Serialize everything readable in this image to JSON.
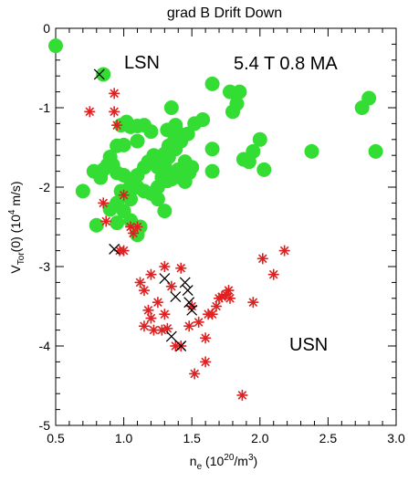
{
  "chart_data": {
    "type": "scatter",
    "title": "grad B Drift Down",
    "xlabel": {
      "main": "n",
      "sub": "e",
      "rest": " (10",
      "sup": "20",
      "tail": "/m",
      "sup2": "3",
      "end": ")"
    },
    "ylabel": {
      "main": "V",
      "sub": "Tor",
      "rest": "(0) (10",
      "sup": "4",
      "tail": " m/s)"
    },
    "xlim": [
      0.5,
      3.0
    ],
    "ylim": [
      -5,
      0
    ],
    "x_ticks": [
      "0.5",
      "1.0",
      "1.5",
      "2.0",
      "2.5",
      "3.0"
    ],
    "x_tick_values": [
      0.5,
      1.0,
      1.5,
      2.0,
      2.5,
      3.0
    ],
    "y_ticks": [
      "0",
      "-1",
      "-2",
      "-3",
      "-4",
      "-5"
    ],
    "y_tick_values": [
      0,
      -1,
      -2,
      -3,
      -4,
      -5
    ],
    "grid": false,
    "annotations": {
      "lsn": {
        "text": "LSN",
        "color": "#22cc22"
      },
      "usn": {
        "text": "USN",
        "color": "#e02020"
      },
      "params": {
        "text": "5.4 T  0.8 MA",
        "color": "#000000"
      }
    },
    "series": [
      {
        "marker": "circle",
        "color": "#33dd33",
        "points": [
          [
            0.5,
            -0.22
          ],
          [
            0.85,
            -0.58
          ],
          [
            0.95,
            -1.48
          ],
          [
            1.0,
            -1.47
          ],
          [
            1.1,
            -1.42
          ],
          [
            0.98,
            -1.22
          ],
          [
            1.02,
            -1.18
          ],
          [
            1.05,
            -1.24
          ],
          [
            1.1,
            -1.23
          ],
          [
            1.15,
            -1.22
          ],
          [
            1.2,
            -1.3
          ],
          [
            1.32,
            -1.28
          ],
          [
            1.35,
            -1.0
          ],
          [
            1.38,
            -1.22
          ],
          [
            1.4,
            -1.32
          ],
          [
            1.37,
            -1.42
          ],
          [
            1.33,
            -1.48
          ],
          [
            1.3,
            -1.58
          ],
          [
            1.33,
            -1.62
          ],
          [
            1.38,
            -1.52
          ],
          [
            1.42,
            -1.42
          ],
          [
            1.47,
            -1.33
          ],
          [
            1.52,
            -1.2
          ],
          [
            1.58,
            -1.15
          ],
          [
            1.65,
            -0.7
          ],
          [
            1.78,
            -0.8
          ],
          [
            1.8,
            -1.05
          ],
          [
            1.83,
            -0.95
          ],
          [
            1.85,
            -0.8
          ],
          [
            2.0,
            -1.4
          ],
          [
            1.95,
            -1.55
          ],
          [
            1.92,
            -1.68
          ],
          [
            1.88,
            -1.65
          ],
          [
            2.03,
            -1.78
          ],
          [
            2.38,
            -1.55
          ],
          [
            2.75,
            -1.0
          ],
          [
            2.8,
            -0.88
          ],
          [
            2.85,
            -1.55
          ],
          [
            1.65,
            -1.52
          ],
          [
            1.65,
            -1.8
          ],
          [
            0.9,
            -1.62
          ],
          [
            0.85,
            -1.78
          ],
          [
            0.78,
            -1.8
          ],
          [
            0.83,
            -1.88
          ],
          [
            0.88,
            -1.72
          ],
          [
            0.92,
            -1.72
          ],
          [
            0.95,
            -1.82
          ],
          [
            1.0,
            -1.85
          ],
          [
            1.05,
            -1.98
          ],
          [
            1.1,
            -1.85
          ],
          [
            1.15,
            -1.75
          ],
          [
            1.18,
            -1.68
          ],
          [
            1.22,
            -1.6
          ],
          [
            1.25,
            -1.75
          ],
          [
            1.28,
            -1.88
          ],
          [
            1.3,
            -1.72
          ],
          [
            1.32,
            -1.92
          ],
          [
            1.35,
            -1.82
          ],
          [
            1.4,
            -1.78
          ],
          [
            1.42,
            -1.88
          ],
          [
            1.45,
            -1.68
          ],
          [
            1.48,
            -1.82
          ],
          [
            1.5,
            -1.75
          ],
          [
            1.45,
            -1.93
          ],
          [
            1.25,
            -2.0
          ],
          [
            1.2,
            -2.08
          ],
          [
            1.15,
            -2.05
          ],
          [
            1.1,
            -2.0
          ],
          [
            1.05,
            -2.15
          ],
          [
            0.98,
            -2.05
          ],
          [
            0.95,
            -2.2
          ],
          [
            0.9,
            -2.28
          ],
          [
            0.95,
            -2.45
          ],
          [
            1.0,
            -2.3
          ],
          [
            1.05,
            -2.42
          ],
          [
            1.1,
            -2.6
          ],
          [
            1.12,
            -2.5
          ],
          [
            1.3,
            -2.3
          ],
          [
            0.8,
            -2.48
          ],
          [
            0.7,
            -2.05
          ],
          [
            1.35,
            -1.9
          ],
          [
            1.25,
            -2.15
          ]
        ]
      },
      {
        "marker": "asterisk",
        "color": "#e02020",
        "points": [
          [
            0.75,
            -1.05
          ],
          [
            0.93,
            -0.82
          ],
          [
            0.93,
            -1.05
          ],
          [
            0.95,
            -1.22
          ],
          [
            0.85,
            -2.2
          ],
          [
            0.87,
            -2.43
          ],
          [
            1.0,
            -2.1
          ],
          [
            0.97,
            -2.8
          ],
          [
            1.0,
            -2.8
          ],
          [
            1.05,
            -2.5
          ],
          [
            1.1,
            -2.5
          ],
          [
            1.07,
            -2.58
          ],
          [
            1.3,
            -3.0
          ],
          [
            1.2,
            -3.1
          ],
          [
            1.12,
            -3.2
          ],
          [
            1.15,
            -3.3
          ],
          [
            1.25,
            -3.45
          ],
          [
            1.35,
            -3.25
          ],
          [
            1.18,
            -3.55
          ],
          [
            1.2,
            -3.65
          ],
          [
            1.3,
            -3.6
          ],
          [
            1.15,
            -3.75
          ],
          [
            1.22,
            -3.8
          ],
          [
            1.28,
            -3.8
          ],
          [
            1.32,
            -3.78
          ],
          [
            1.48,
            -3.75
          ],
          [
            1.5,
            -3.5
          ],
          [
            1.55,
            -3.7
          ],
          [
            1.62,
            -3.6
          ],
          [
            1.65,
            -3.6
          ],
          [
            1.68,
            -3.5
          ],
          [
            1.7,
            -3.4
          ],
          [
            1.72,
            -3.38
          ],
          [
            1.75,
            -3.35
          ],
          [
            1.77,
            -3.3
          ],
          [
            1.78,
            -3.4
          ],
          [
            1.6,
            -3.9
          ],
          [
            1.38,
            -4.0
          ],
          [
            1.42,
            -4.0
          ],
          [
            1.52,
            -4.35
          ],
          [
            1.6,
            -4.2
          ],
          [
            1.87,
            -4.62
          ],
          [
            1.95,
            -3.45
          ],
          [
            2.02,
            -2.9
          ],
          [
            2.1,
            -3.1
          ],
          [
            2.18,
            -2.8
          ],
          [
            1.42,
            -3.02
          ]
        ]
      },
      {
        "marker": "cross",
        "color": "#000000",
        "points": [
          [
            0.82,
            -0.58
          ],
          [
            0.93,
            -2.78
          ],
          [
            1.3,
            -3.15
          ],
          [
            1.38,
            -3.38
          ],
          [
            1.45,
            -3.2
          ],
          [
            1.47,
            -3.3
          ],
          [
            1.48,
            -3.45
          ],
          [
            1.5,
            -3.55
          ],
          [
            1.42,
            -4.0
          ],
          [
            1.35,
            -3.88
          ]
        ]
      }
    ]
  }
}
